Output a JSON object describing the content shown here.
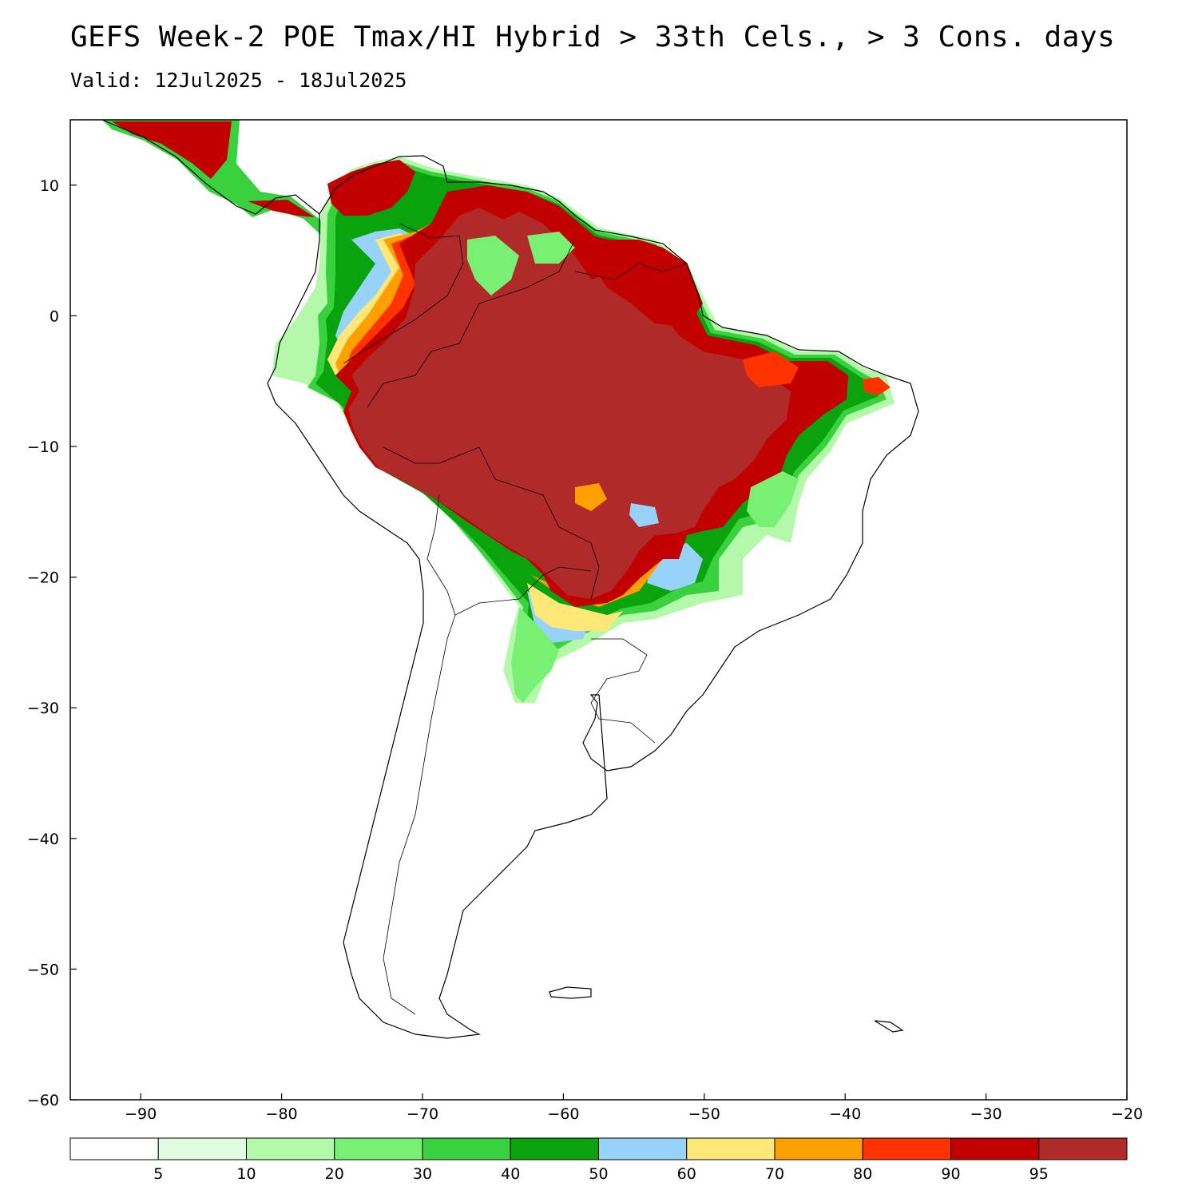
{
  "header": {
    "title": "GEFS Week-2 POE Tmax/HI Hybrid > 33th Cels., > 3 Cons. days",
    "valid": "Valid: 12Jul2025 - 18Jul2025"
  },
  "map": {
    "region": "South America",
    "lon_range": [
      -95,
      -20
    ],
    "lat_range": [
      -60,
      15
    ],
    "lon_ticks": [
      "−90",
      "−80",
      "−70",
      "−60",
      "−50",
      "−40",
      "−30",
      "−20"
    ],
    "lat_ticks": [
      "10",
      "0",
      "−10",
      "−20",
      "−30",
      "−40",
      "−50",
      "−60"
    ],
    "lon_tick_values": [
      -90,
      -80,
      -70,
      -60,
      -50,
      -40,
      -30,
      -20
    ],
    "lat_tick_values": [
      10,
      0,
      -10,
      -20,
      -30,
      -40,
      -50,
      -60
    ]
  },
  "legend": {
    "labels": [
      "5",
      "10",
      "20",
      "30",
      "40",
      "50",
      "60",
      "70",
      "80",
      "90",
      "95"
    ],
    "colors": [
      "#ffffff",
      "#e1fde1",
      "#b4f9a9",
      "#78f073",
      "#3ad13f",
      "#0aa20d",
      "#96d2fa",
      "#ffe877",
      "#ffa000",
      "#ff3300",
      "#c20000",
      "#b02a2a"
    ]
  }
}
